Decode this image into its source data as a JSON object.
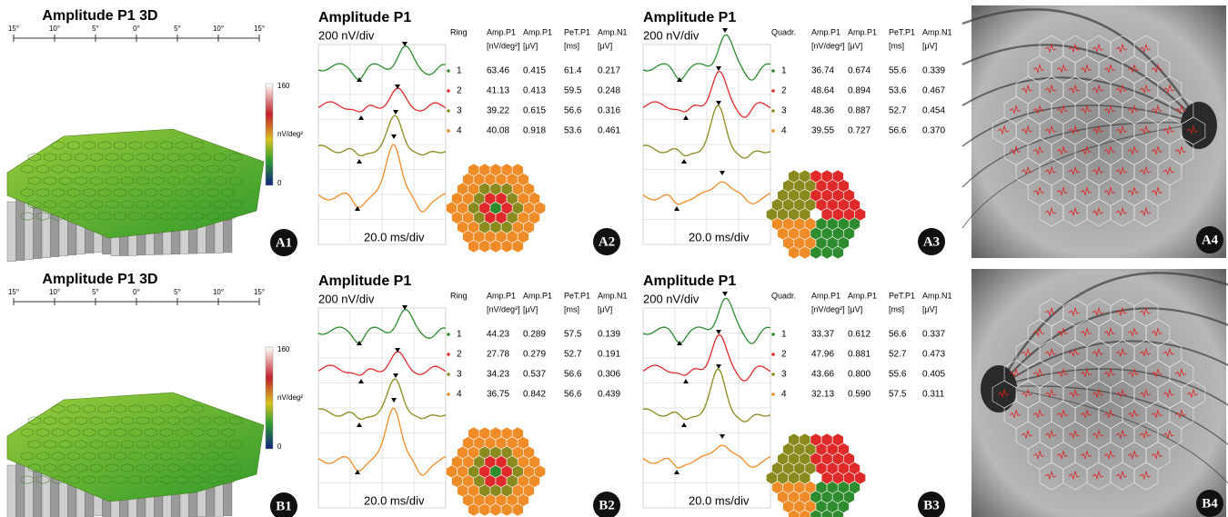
{
  "rows": [
    {
      "panel3d": {
        "title": "Amplitude P1 3D",
        "ticks": [
          "15°",
          "10°",
          "5°",
          "0°",
          "5°",
          "10°",
          "15°"
        ],
        "colorbar": [
          "160",
          "nV/deg²",
          "0"
        ],
        "label": "A1"
      },
      "ring": {
        "title": "Amplitude P1",
        "yscale": "200 nV/div",
        "xscale": "20.0 ms/div",
        "names": [
          "Ring",
          "Amp.P1",
          "Amp.P1",
          "PeT.P1",
          "Amp.N1"
        ],
        "units": [
          "[nV/deg²]",
          "[μV]",
          "[ms]",
          "[μV]"
        ],
        "rows": [
          [
            "1",
            "63.46",
            "0.415",
            "61.4",
            "0.217"
          ],
          [
            "2",
            "41.13",
            "0.413",
            "59.5",
            "0.248"
          ],
          [
            "3",
            "39.22",
            "0.615",
            "56.6",
            "0.316"
          ],
          [
            "4",
            "40.08",
            "0.918",
            "53.6",
            "0.461"
          ]
        ],
        "label": "A2"
      },
      "quadrant": {
        "title": "Amplitude P1",
        "yscale": "200 nV/div",
        "xscale": "20.0 ms/div",
        "names": [
          "Quadr.",
          "Amp.P1",
          "Amp.P1",
          "PeT.P1",
          "Amp.N1"
        ],
        "units": [
          "[nV/deg²]",
          "[μV]",
          "[ms]",
          "[μV]"
        ],
        "rows": [
          [
            "1",
            "36.74",
            "0.674",
            "55.6",
            "0.339"
          ],
          [
            "2",
            "48.64",
            "0.894",
            "53.6",
            "0.467"
          ],
          [
            "3",
            "48.36",
            "0.887",
            "52.7",
            "0.454"
          ],
          [
            "4",
            "39.55",
            "0.727",
            "56.6",
            "0.370"
          ]
        ],
        "label": "A3"
      },
      "fundus": {
        "label": "A4"
      }
    },
    {
      "panel3d": {
        "title": "Amplitude P1 3D",
        "ticks": [
          "15°",
          "10°",
          "5°",
          "0°",
          "5°",
          "10°",
          "15°"
        ],
        "colorbar": [
          "160",
          "nV/deg²",
          "0"
        ],
        "label": "B1"
      },
      "ring": {
        "title": "Amplitude P1",
        "yscale": "200 nV/div",
        "xscale": "20.0 ms/div",
        "names": [
          "Ring",
          "Amp.P1",
          "Amp.P1",
          "PeT.P1",
          "Amp.N1"
        ],
        "units": [
          "[nV/deg²]",
          "[μV]",
          "[ms]",
          "[μV]"
        ],
        "rows": [
          [
            "1",
            "44.23",
            "0.289",
            "57.5",
            "0.139"
          ],
          [
            "2",
            "27.78",
            "0.279",
            "52.7",
            "0.191"
          ],
          [
            "3",
            "34.23",
            "0.537",
            "56.6",
            "0.306"
          ],
          [
            "4",
            "36.75",
            "0.842",
            "56.6",
            "0.439"
          ]
        ],
        "label": "B2"
      },
      "quadrant": {
        "title": "Amplitude P1",
        "yscale": "200 nV/div",
        "xscale": "20.0 ms/div",
        "names": [
          "Quadr.",
          "Amp.P1",
          "Amp.P1",
          "PeT.P1",
          "Amp.N1"
        ],
        "units": [
          "[nV/deg²]",
          "[μV]",
          "[ms]",
          "[μV]"
        ],
        "rows": [
          [
            "1",
            "33.37",
            "0.612",
            "56.6",
            "0.337"
          ],
          [
            "2",
            "47.96",
            "0.881",
            "52.7",
            "0.473"
          ],
          [
            "3",
            "43.66",
            "0.800",
            "55.6",
            "0.405"
          ],
          [
            "4",
            "32.13",
            "0.590",
            "57.5",
            "0.311"
          ]
        ],
        "label": "B3"
      },
      "fundus": {
        "label": "B4"
      }
    }
  ]
}
